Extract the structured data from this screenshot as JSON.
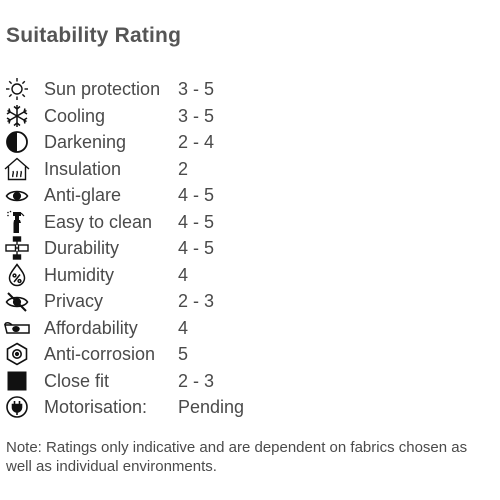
{
  "title": "Suitability Rating",
  "ratings": [
    {
      "icon": "sun-icon",
      "label": "Sun protection",
      "value": "3 - 5"
    },
    {
      "icon": "snowflake-icon",
      "label": "Cooling",
      "value": "3 - 5"
    },
    {
      "icon": "half-circle-icon",
      "label": "Darkening",
      "value": "2 - 4"
    },
    {
      "icon": "house-heat-icon",
      "label": "Insulation",
      "value": "2"
    },
    {
      "icon": "eye-icon",
      "label": "Anti-glare",
      "value": "4 - 5"
    },
    {
      "icon": "spray-bottle-icon",
      "label": "Easy to clean",
      "value": "4 - 5"
    },
    {
      "icon": "durability-icon",
      "label": "Durability",
      "value": "4 - 5"
    },
    {
      "icon": "humidity-drop-icon",
      "label": "Humidity",
      "value": "4"
    },
    {
      "icon": "eye-crossed-icon",
      "label": "Privacy",
      "value": "2 - 3"
    },
    {
      "icon": "money-icon",
      "label": "Affordability",
      "value": "4"
    },
    {
      "icon": "nut-icon",
      "label": "Anti-corrosion",
      "value": "5"
    },
    {
      "icon": "black-square-icon",
      "label": "Close fit",
      "value": "2 - 3"
    },
    {
      "icon": "plug-icon",
      "label": "Motorisation:",
      "value": "Pending"
    }
  ],
  "note": "Note: Ratings only indicative and are dependent on fabrics chosen as well as individual environments."
}
